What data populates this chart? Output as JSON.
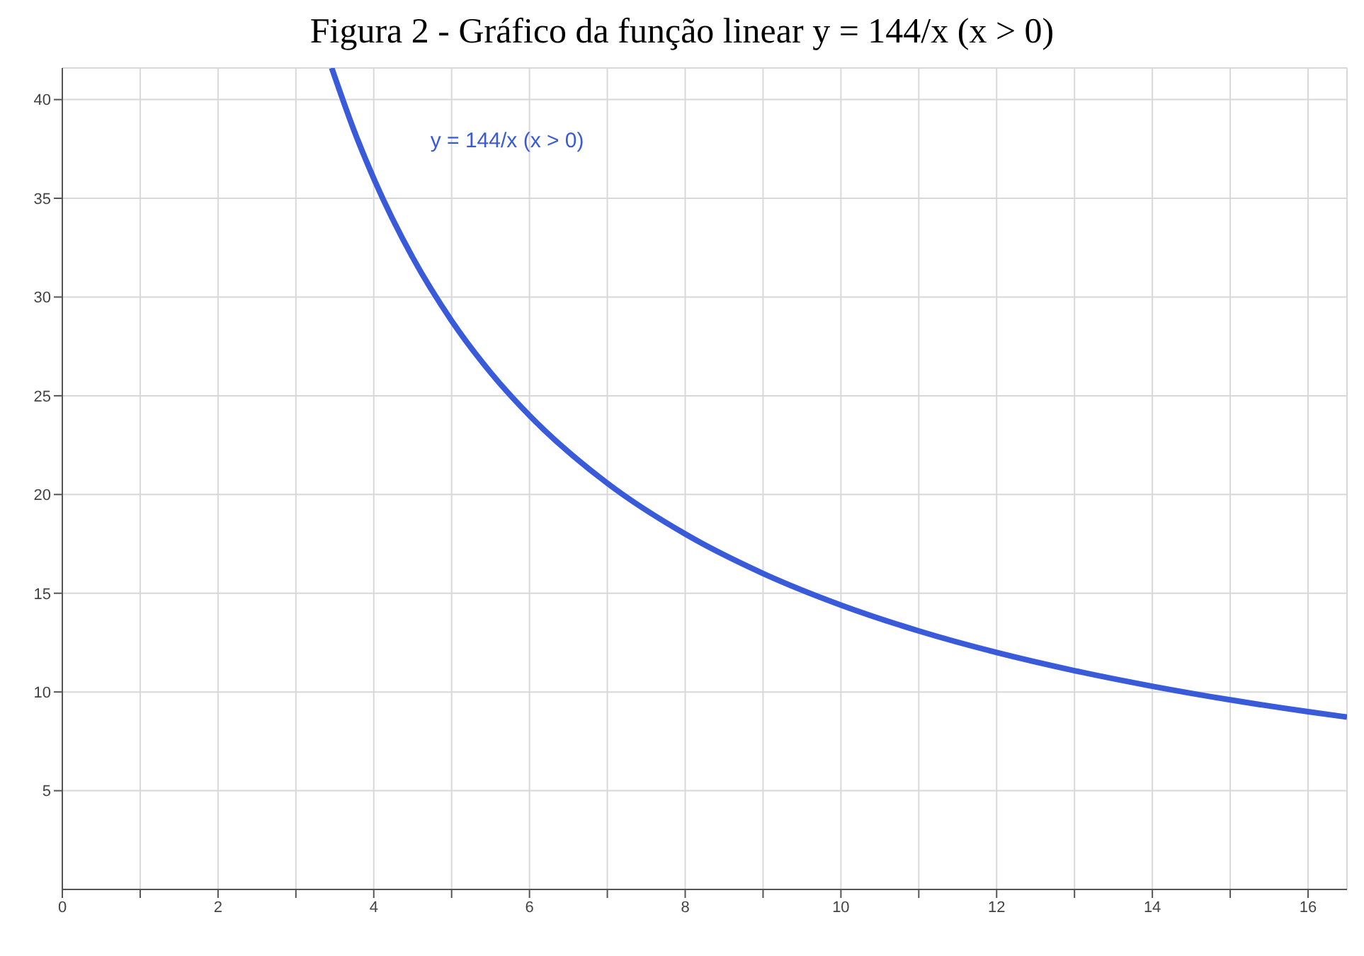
{
  "chart_data": {
    "type": "line",
    "title": "Figura 2 - Gráfico da função linear y = 144/x (x > 0)",
    "x": [
      3.46,
      3.75,
      4,
      4.5,
      5,
      5.5,
      6,
      7,
      8,
      9,
      10,
      11,
      12,
      13,
      14,
      15,
      16,
      16.5
    ],
    "series": [
      {
        "name": "y = 144/x (x > 0)",
        "color": "#3a5bd9",
        "values": [
          41.6,
          38.4,
          36,
          32,
          28.8,
          26.18,
          24,
          20.57,
          18,
          16,
          14.4,
          13.09,
          12,
          11.08,
          10.29,
          9.6,
          9,
          8.73
        ]
      }
    ],
    "xlim": [
      0,
      16.5
    ],
    "ylim": [
      0,
      41.6
    ],
    "xticks": [
      0,
      {
        "value": 1,
        "label": null
      },
      2,
      {
        "value": 3,
        "label": null
      },
      4,
      {
        "value": 5,
        "label": null
      },
      6,
      {
        "value": 7,
        "label": null
      },
      8,
      {
        "value": 9,
        "label": null
      },
      10,
      {
        "value": 11,
        "label": null
      },
      12,
      {
        "value": 13,
        "label": null
      },
      14,
      {
        "value": 15,
        "label": null
      },
      16
    ],
    "yticks": [
      5,
      10,
      15,
      20,
      25,
      30,
      35,
      40
    ],
    "grid": true,
    "marker": "none",
    "line_style": "solid"
  }
}
